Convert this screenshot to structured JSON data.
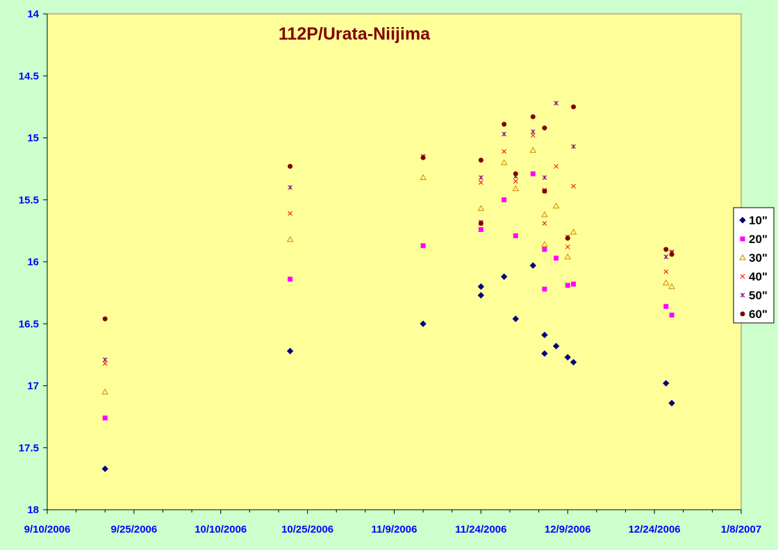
{
  "chart_data": {
    "type": "scatter",
    "title": "112P/Urata-Niijima",
    "xlabel": "",
    "ylabel": "",
    "x_axis": {
      "type": "date",
      "range": [
        "2006-09-10",
        "2007-01-08"
      ],
      "major_step_days": 15,
      "tick_labels": [
        "9/10/2006",
        "9/25/2006",
        "10/10/2006",
        "10/25/2006",
        "11/9/2006",
        "11/24/2006",
        "12/9/2006",
        "12/24/2006",
        "1/8/2007"
      ]
    },
    "y_axis": {
      "reversed": true,
      "ylim": [
        14,
        18
      ],
      "tick_labels": [
        "14",
        "14.5",
        "15",
        "15.5",
        "16",
        "16.5",
        "17",
        "17.5",
        "18"
      ]
    },
    "grid": false,
    "legend": "right",
    "series": [
      {
        "name": "10\"",
        "marker": "diamond",
        "color": "#000080",
        "points": [
          [
            "2006-09-20",
            17.67
          ],
          [
            "2006-10-22",
            16.72
          ],
          [
            "2006-11-14",
            16.5
          ],
          [
            "2006-11-24",
            16.2
          ],
          [
            "2006-11-24",
            16.27
          ],
          [
            "2006-11-28",
            16.12
          ],
          [
            "2006-11-30",
            16.46
          ],
          [
            "2006-12-03",
            16.03
          ],
          [
            "2006-12-05",
            16.59
          ],
          [
            "2006-12-05",
            16.74
          ],
          [
            "2006-12-07",
            16.68
          ],
          [
            "2006-12-09",
            16.77
          ],
          [
            "2006-12-10",
            16.81
          ],
          [
            "2006-12-26",
            16.98
          ],
          [
            "2006-12-27",
            17.14
          ]
        ]
      },
      {
        "name": "20\"",
        "marker": "square",
        "color": "#ff00ff",
        "points": [
          [
            "2006-09-20",
            17.26
          ],
          [
            "2006-10-22",
            16.14
          ],
          [
            "2006-11-14",
            15.87
          ],
          [
            "2006-11-24",
            15.74
          ],
          [
            "2006-11-28",
            15.5
          ],
          [
            "2006-11-30",
            15.79
          ],
          [
            "2006-12-03",
            15.29
          ],
          [
            "2006-12-05",
            15.9
          ],
          [
            "2006-12-05",
            16.22
          ],
          [
            "2006-12-07",
            15.97
          ],
          [
            "2006-12-09",
            16.19
          ],
          [
            "2006-12-10",
            16.18
          ],
          [
            "2006-12-26",
            16.36
          ],
          [
            "2006-12-27",
            16.43
          ]
        ]
      },
      {
        "name": "30\"",
        "marker": "triangle",
        "color": "#ffcc00",
        "points": [
          [
            "2006-09-20",
            17.05
          ],
          [
            "2006-10-22",
            15.82
          ],
          [
            "2006-11-14",
            15.32
          ],
          [
            "2006-11-24",
            15.57
          ],
          [
            "2006-11-28",
            15.2
          ],
          [
            "2006-11-30",
            15.41
          ],
          [
            "2006-12-03",
            15.1
          ],
          [
            "2006-12-05",
            15.62
          ],
          [
            "2006-12-05",
            15.86
          ],
          [
            "2006-12-07",
            15.55
          ],
          [
            "2006-12-09",
            15.96
          ],
          [
            "2006-12-10",
            15.76
          ],
          [
            "2006-12-26",
            16.17
          ],
          [
            "2006-12-27",
            16.2
          ]
        ]
      },
      {
        "name": "40\"",
        "marker": "x",
        "color": "#ff0000",
        "points": [
          [
            "2006-09-20",
            16.82
          ],
          [
            "2006-10-22",
            15.61
          ],
          [
            "2006-11-14",
            15.15
          ],
          [
            "2006-11-24",
            15.36
          ],
          [
            "2006-11-24",
            15.69
          ],
          [
            "2006-11-28",
            15.11
          ],
          [
            "2006-11-30",
            15.35
          ],
          [
            "2006-12-03",
            14.98
          ],
          [
            "2006-12-05",
            15.69
          ],
          [
            "2006-12-05",
            15.42
          ],
          [
            "2006-12-07",
            15.23
          ],
          [
            "2006-12-09",
            15.88
          ],
          [
            "2006-12-10",
            15.39
          ],
          [
            "2006-12-26",
            16.08
          ],
          [
            "2006-12-27",
            15.93
          ]
        ]
      },
      {
        "name": "50\"",
        "marker": "asterisk",
        "color": "#800080",
        "points": [
          [
            "2006-09-20",
            16.79
          ],
          [
            "2006-10-22",
            15.4
          ],
          [
            "2006-11-14",
            15.15
          ],
          [
            "2006-11-24",
            15.32
          ],
          [
            "2006-11-24",
            15.68
          ],
          [
            "2006-11-28",
            14.97
          ],
          [
            "2006-11-30",
            15.31
          ],
          [
            "2006-12-03",
            14.95
          ],
          [
            "2006-12-05",
            15.32
          ],
          [
            "2006-12-05",
            15.43
          ],
          [
            "2006-12-07",
            14.72
          ],
          [
            "2006-12-09",
            15.8
          ],
          [
            "2006-12-10",
            15.07
          ],
          [
            "2006-12-26",
            15.96
          ],
          [
            "2006-12-27",
            15.92
          ]
        ]
      },
      {
        "name": "60\"",
        "marker": "circle",
        "color": "#800000",
        "points": [
          [
            "2006-09-20",
            16.46
          ],
          [
            "2006-10-22",
            15.23
          ],
          [
            "2006-11-14",
            15.16
          ],
          [
            "2006-11-24",
            15.18
          ],
          [
            "2006-11-24",
            15.69
          ],
          [
            "2006-11-28",
            14.89
          ],
          [
            "2006-11-30",
            15.29
          ],
          [
            "2006-12-03",
            14.83
          ],
          [
            "2006-12-05",
            14.92
          ],
          [
            "2006-12-05",
            15.43
          ],
          [
            "2006-12-09",
            15.81
          ],
          [
            "2006-12-10",
            14.75
          ],
          [
            "2006-12-26",
            15.9
          ],
          [
            "2006-12-27",
            15.94
          ]
        ]
      }
    ]
  }
}
